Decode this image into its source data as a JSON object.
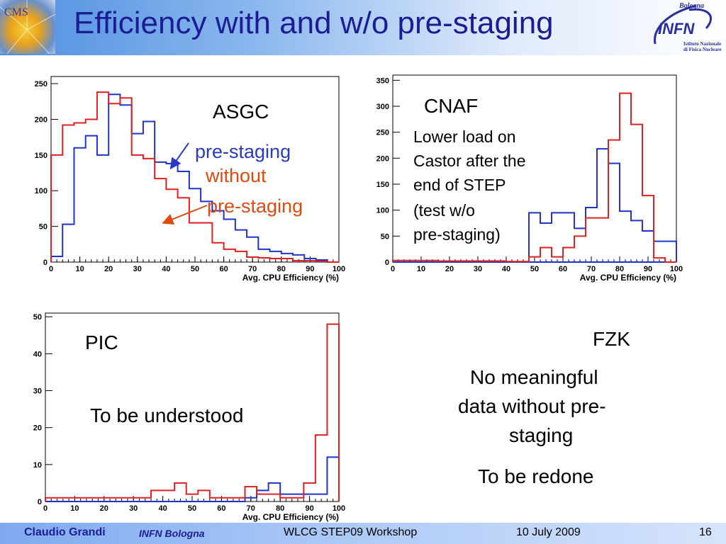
{
  "slide": {
    "title": "Efficiency with and w/o pre-staging",
    "logo_left_text": "CMS",
    "logo_right": {
      "city": "Bologna",
      "name": "INFN",
      "line1": "Istituto Nazionale",
      "line2": "di Fisica Nucleare"
    }
  },
  "annotations": {
    "asgc_label": "ASGC",
    "asgc_prestaging": "pre-staging",
    "asgc_without_1": "without",
    "asgc_without_2": "pre-staging",
    "cnaf_label": "CNAF",
    "cnaf_note": [
      "Lower load on",
      "Castor after the",
      "end of STEP",
      "(test w/o",
      "pre-staging)"
    ],
    "pic_label": "PIC",
    "pic_note": "To be understood",
    "fzk_label": "FZK",
    "fzk_note": [
      "No meaningful",
      "data without pre-",
      "staging"
    ],
    "fzk_redo": "To be redone"
  },
  "footer": {
    "author": "Claudio Grandi",
    "affiliation": "INFN Bologna",
    "event": "WLCG STEP09 Workshop",
    "date": "10 July 2009",
    "page": "16"
  },
  "colors": {
    "title": "#1c1c94",
    "blue_series": "#1f35c8",
    "red_series": "#e02121",
    "orange_text": "#e04a10"
  },
  "chart_data": [
    {
      "type": "histogram",
      "id": "asgc",
      "xlabel": "Avg. CPU Efficiency (%)",
      "xlim": [
        0,
        100
      ],
      "ylim": [
        0,
        260
      ],
      "xticks": [
        0,
        10,
        20,
        30,
        40,
        50,
        60,
        70,
        80,
        90,
        100
      ],
      "yticks": [
        0,
        50,
        100,
        150,
        200,
        250
      ],
      "bin_edges": [
        0,
        4,
        8,
        12,
        16,
        20,
        24,
        28,
        32,
        36,
        40,
        44,
        48,
        52,
        56,
        60,
        64,
        68,
        72,
        76,
        80,
        84,
        88,
        92,
        96,
        100
      ],
      "series": [
        {
          "color": "blue",
          "values": [
            8,
            53,
            160,
            177,
            150,
            235,
            220,
            180,
            197,
            140,
            138,
            127,
            103,
            85,
            72,
            60,
            45,
            35,
            18,
            15,
            12,
            10,
            5,
            3,
            0
          ]
        },
        {
          "color": "red",
          "values": [
            150,
            192,
            195,
            200,
            238,
            222,
            230,
            150,
            145,
            117,
            102,
            90,
            55,
            55,
            27,
            18,
            15,
            7,
            6,
            5,
            5,
            2,
            2,
            1,
            0
          ]
        }
      ]
    },
    {
      "type": "histogram",
      "id": "cnaf",
      "xlabel": "Avg. CPU Efficiency (%)",
      "xlim": [
        0,
        100
      ],
      "ylim": [
        0,
        360
      ],
      "xticks": [
        0,
        10,
        20,
        30,
        40,
        50,
        60,
        70,
        80,
        90,
        100
      ],
      "yticks": [
        0,
        50,
        100,
        150,
        200,
        250,
        300,
        350
      ],
      "bin_edges": [
        0,
        4,
        8,
        12,
        16,
        20,
        24,
        28,
        32,
        36,
        40,
        44,
        48,
        52,
        56,
        60,
        64,
        68,
        72,
        76,
        80,
        84,
        88,
        92,
        96,
        100
      ],
      "series": [
        {
          "color": "blue",
          "values": [
            0,
            0,
            0,
            0,
            0,
            0,
            0,
            0,
            0,
            0,
            0,
            0,
            0,
            0,
            0,
            0,
            0,
            0,
            0,
            0,
            0,
            0,
            0,
            0,
            0
          ]
        },
        {
          "color": "blue",
          "values": [
            0,
            0,
            0,
            0,
            0,
            0,
            0,
            0,
            0,
            0,
            0,
            0,
            95,
            75,
            95,
            95,
            65,
            105,
            218,
            190,
            98,
            80,
            60,
            40,
            40
          ]
        },
        {
          "color": "red",
          "values": [
            3,
            3,
            3,
            3,
            2,
            2,
            2,
            2,
            2,
            2,
            1,
            1,
            10,
            28,
            10,
            28,
            50,
            85,
            85,
            235,
            325,
            265,
            128,
            8,
            0
          ]
        }
      ]
    },
    {
      "type": "histogram",
      "id": "pic",
      "xlabel": "Avg. CPU Efficiency (%)",
      "xlim": [
        0,
        100
      ],
      "ylim": [
        0,
        51
      ],
      "xticks": [
        0,
        10,
        20,
        30,
        40,
        50,
        60,
        70,
        80,
        90,
        100
      ],
      "yticks": [
        0,
        10,
        20,
        30,
        40,
        50
      ],
      "bin_edges": [
        0,
        4,
        8,
        12,
        16,
        20,
        24,
        28,
        32,
        36,
        40,
        44,
        48,
        52,
        56,
        60,
        64,
        68,
        72,
        76,
        80,
        84,
        88,
        92,
        96,
        100
      ],
      "series": [
        {
          "color": "blue",
          "values": [
            0,
            0,
            0,
            0,
            0,
            0,
            0,
            0,
            0,
            0,
            0,
            0,
            0,
            0,
            0,
            0,
            0,
            1,
            3,
            5,
            2,
            2,
            2,
            2,
            12
          ]
        },
        {
          "color": "red",
          "values": [
            1,
            1,
            1,
            1,
            1,
            1,
            1,
            1,
            1,
            3,
            3,
            5,
            2,
            3,
            1,
            1,
            1,
            4,
            2,
            2,
            1,
            1,
            5,
            18,
            48
          ]
        }
      ]
    }
  ]
}
